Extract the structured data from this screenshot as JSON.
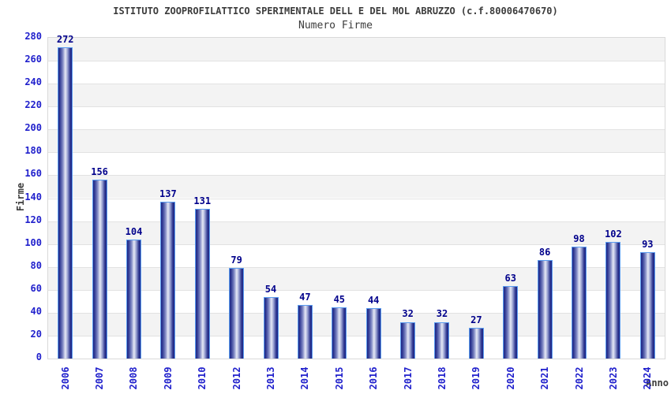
{
  "chart_data": {
    "type": "bar",
    "title": "ISTITUTO ZOOPROFILATTICO SPERIMENTALE DELL E DEL MOL ABRUZZO (c.f.80006470670)",
    "subtitle": "Numero Firme",
    "xlabel": "Anno",
    "ylabel": "Firme",
    "categories": [
      "2006",
      "2007",
      "2008",
      "2009",
      "2010",
      "2012",
      "2013",
      "2014",
      "2015",
      "2016",
      "2017",
      "2018",
      "2019",
      "2020",
      "2021",
      "2022",
      "2023",
      "2024"
    ],
    "values": [
      272,
      156,
      104,
      137,
      131,
      79,
      54,
      47,
      45,
      44,
      32,
      32,
      27,
      63,
      86,
      98,
      102,
      93
    ],
    "ylim": [
      0,
      280
    ],
    "y_ticks": [
      0,
      20,
      40,
      60,
      80,
      100,
      120,
      140,
      160,
      180,
      200,
      220,
      240,
      260,
      280
    ],
    "grid": "horizontal gridlines every 20 with alternating gray/white bands",
    "legend": "none",
    "colors": {
      "bar_border": "#5a9cf0",
      "bar_dark": "#1e2786",
      "bar_highlight": "#e7eaf6",
      "value_label": "#00008b",
      "tick_label": "#2020cc",
      "title_text": "#3c3c3c",
      "band_gray": "#f3f3f3",
      "grid_line": "#e2e2e2"
    }
  }
}
